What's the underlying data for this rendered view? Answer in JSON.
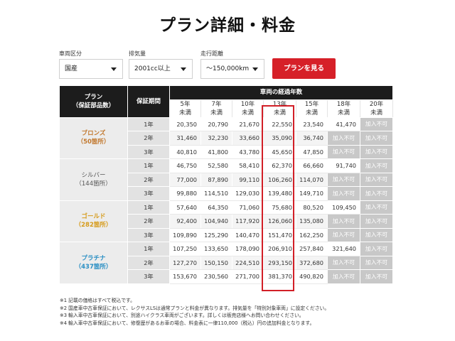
{
  "page": {
    "title": "プラン詳細・料金"
  },
  "filters": {
    "vehicle_class": {
      "label": "車両区分",
      "value": "国産"
    },
    "displacement": {
      "label": "排気量",
      "value": "2001cc以上"
    },
    "mileage": {
      "label": "走行距離",
      "value": "〜150,000km"
    },
    "submit_label": "プランを見る"
  },
  "table": {
    "header": {
      "plan_line1": "プラン",
      "plan_line2": "（保証部品数）",
      "period": "保証期間",
      "years_title": "車両の経過年数",
      "years": [
        {
          "line1": "5年",
          "line2": "未満"
        },
        {
          "line1": "7年",
          "line2": "未満"
        },
        {
          "line1": "10年",
          "line2": "未満"
        },
        {
          "line1": "13年",
          "line2": "未満"
        },
        {
          "line1": "15年",
          "line2": "未満"
        },
        {
          "line1": "18年",
          "line2": "未満"
        },
        {
          "line1": "20年",
          "line2": "未満"
        }
      ]
    },
    "na_label": "加入不可",
    "highlight_color": "#d21f27",
    "plans": [
      {
        "name": "ブロンズ",
        "parts": "（50箇所）",
        "color": "#c2792f",
        "rows": [
          {
            "period": "1年",
            "prices": [
              "20,350",
              "20,790",
              "21,670",
              "22,550",
              "23,540",
              "41,470",
              null
            ]
          },
          {
            "period": "2年",
            "prices": [
              "31,460",
              "32,230",
              "33,660",
              "35,090",
              "36,740",
              null,
              null
            ]
          },
          {
            "period": "3年",
            "prices": [
              "40,810",
              "41,800",
              "43,780",
              "45,650",
              "47,850",
              null,
              null
            ]
          }
        ]
      },
      {
        "name": "シルバー",
        "parts": "（144箇所）",
        "color": "#555555",
        "rows": [
          {
            "period": "1年",
            "prices": [
              "46,750",
              "52,580",
              "58,410",
              "62,370",
              "66,660",
              "91,740",
              null
            ]
          },
          {
            "period": "2年",
            "prices": [
              "77,000",
              "87,890",
              "99,110",
              "106,260",
              "114,070",
              null,
              null
            ]
          },
          {
            "period": "3年",
            "prices": [
              "99,880",
              "114,510",
              "129,030",
              "139,480",
              "149,710",
              null,
              null
            ]
          }
        ]
      },
      {
        "name": "ゴールド",
        "parts": "（282箇所）",
        "color": "#d69b1a",
        "rows": [
          {
            "period": "1年",
            "prices": [
              "57,640",
              "64,350",
              "71,060",
              "75,680",
              "80,520",
              "109,450",
              null
            ]
          },
          {
            "period": "2年",
            "prices": [
              "92,400",
              "104,940",
              "117,920",
              "126,060",
              "135,080",
              null,
              null
            ]
          },
          {
            "period": "3年",
            "prices": [
              "109,890",
              "125,290",
              "140,470",
              "151,470",
              "162,250",
              null,
              null
            ]
          }
        ]
      },
      {
        "name": "プラチナ",
        "parts": "（437箇所）",
        "color": "#2a8fc4",
        "rows": [
          {
            "period": "1年",
            "prices": [
              "107,250",
              "133,650",
              "178,090",
              "206,910",
              "257,840",
              "321,640",
              null
            ]
          },
          {
            "period": "2年",
            "prices": [
              "127,270",
              "150,150",
              "224,510",
              "293,150",
              "372,680",
              null,
              null
            ]
          },
          {
            "period": "3年",
            "prices": [
              "153,670",
              "230,560",
              "271,700",
              "381,370",
              "490,820",
              null,
              null
            ]
          }
        ]
      }
    ]
  },
  "notes": [
    "※1 記載の価格はすべて税込です。",
    "※2 国産車中古車保証において、レクサスLSは通常プランと料金が異なります。排気量を「特別対象車両」に設定ください。",
    "※3 輸入車中古車保証において、別途ハイクラス車両がございます。詳しくは販売店様へお問い合わせください。",
    "※4 輸入車中古車保証において、修復歴があるお車の場合、料金表に一律110,000（税込）円の追加料金となります。"
  ]
}
